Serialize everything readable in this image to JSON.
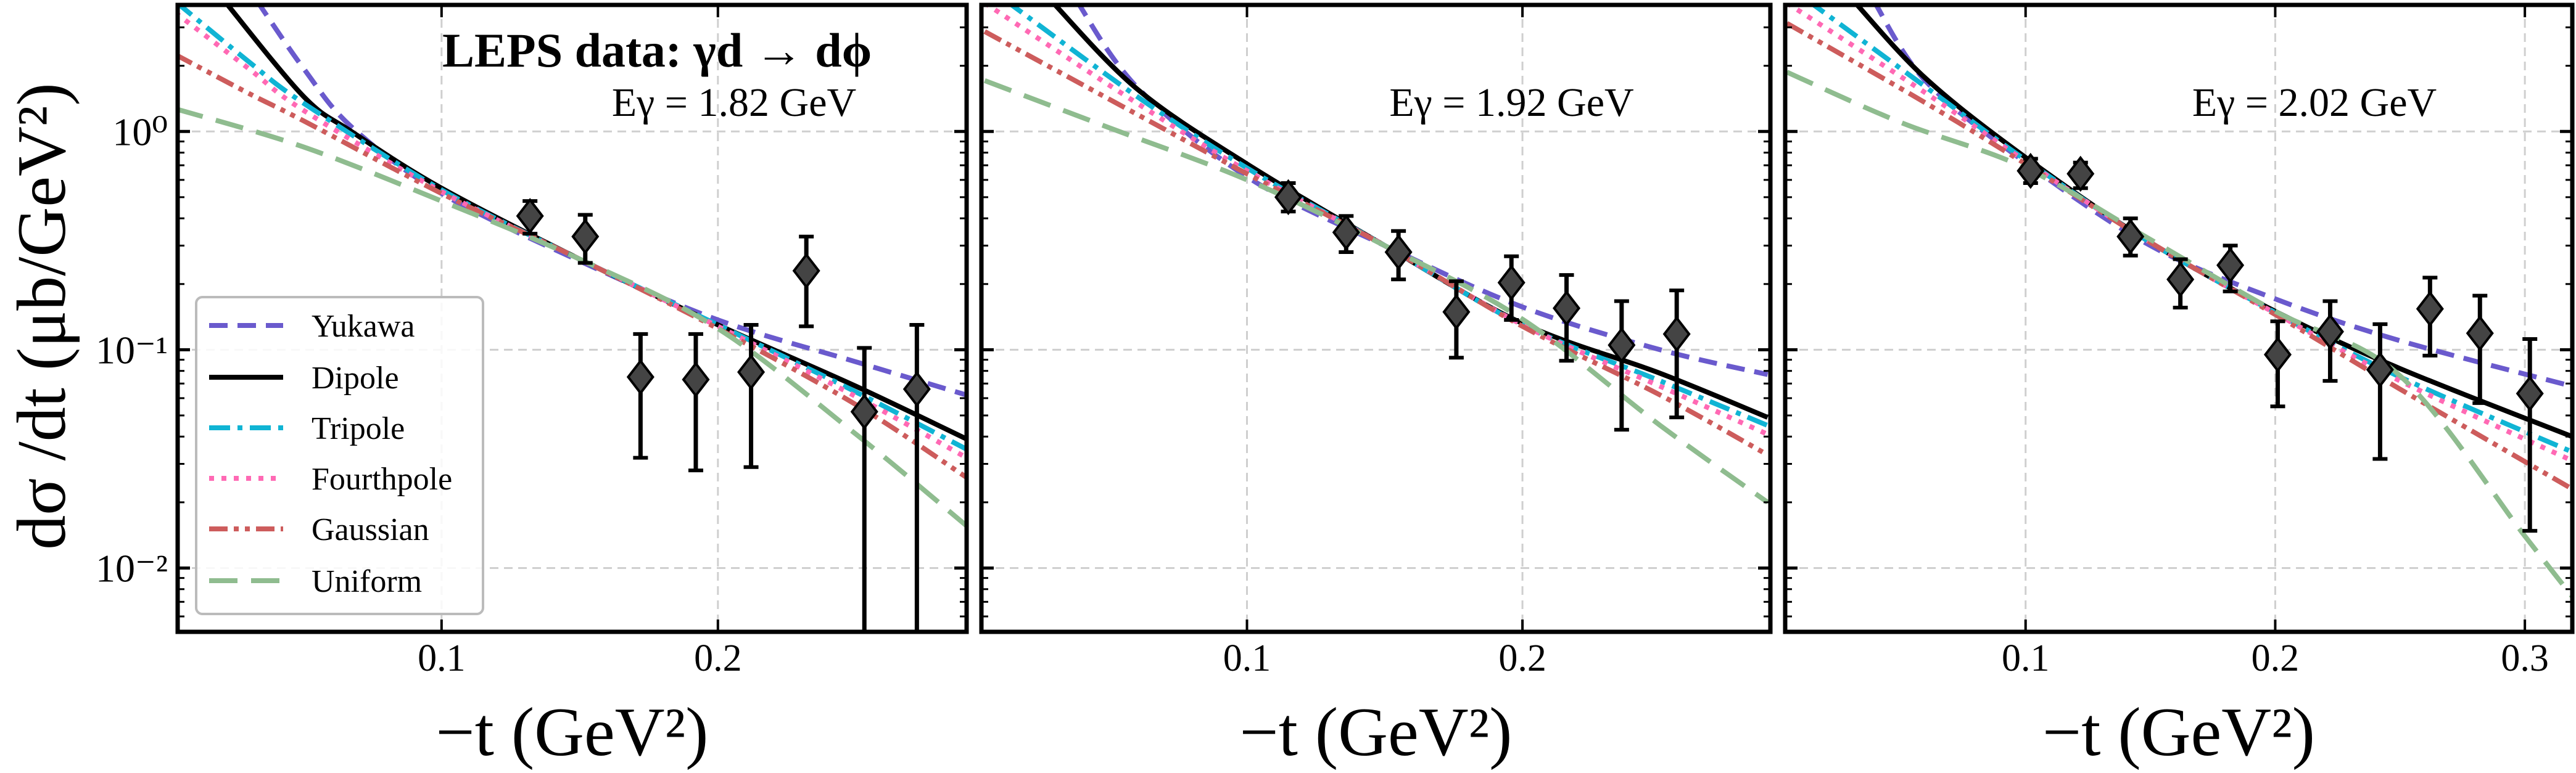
{
  "figure": {
    "ylabel": "dσ /dt (μb/GeV²)",
    "xlabel": "−t (GeV²)",
    "title": "LEPS data: γd → dϕ"
  },
  "legend": {
    "placement": "lower-left of first panel",
    "entries": [
      {
        "name": "Yukawa",
        "color": "#6a5acd",
        "style": "dashed"
      },
      {
        "name": "Dipole",
        "color": "#000000",
        "style": "solid"
      },
      {
        "name": "Tripole",
        "color": "#10b4d4",
        "style": "dashdot"
      },
      {
        "name": "Fourthpole",
        "color": "#ff69b4",
        "style": "dotted"
      },
      {
        "name": "Gaussian",
        "color": "#cd5c5c",
        "style": "dashdotdot"
      },
      {
        "name": "Uniform",
        "color": "#8fbc8f",
        "style": "longdash"
      }
    ]
  },
  "chart_data": [
    {
      "type": "line",
      "annotation": "Eγ = 1.82 GeV",
      "xlabel": "−t (GeV²)",
      "ylabel": "dσ /dt (μb/GeV²)",
      "xlim": [
        0.0045,
        0.29
      ],
      "ylim": [
        0.0051,
        3.8
      ],
      "yscale": "log",
      "grid": true,
      "xticks": [
        "0.1",
        "0.2"
      ],
      "xtick_values": [
        0.1,
        0.2
      ],
      "yticks": [
        "10⁰",
        "10⁻¹",
        "10⁻²"
      ],
      "ytick_values": [
        1,
        0.1,
        0.01
      ],
      "data": {
        "x": [
          0.132,
          0.152,
          0.172,
          0.192,
          0.212,
          0.232,
          0.253,
          0.272
        ],
        "y": [
          0.41,
          0.33,
          0.075,
          0.073,
          0.079,
          0.23,
          0.052,
          0.066
        ],
        "err_high": [
          0.48,
          0.415,
          0.118,
          0.118,
          0.13,
          0.33,
          0.102,
          0.13
        ],
        "err_low": [
          0.34,
          0.25,
          0.032,
          0.028,
          0.029,
          0.128,
          0.001,
          0.001
        ]
      },
      "series": [
        {
          "name": "Yukawa",
          "points": [
            [
              0.033,
              4.0
            ],
            [
              0.05,
              1.95
            ],
            [
              0.0674,
              1.05
            ],
            [
              0.1,
              0.52
            ],
            [
              0.15,
              0.255
            ],
            [
              0.2,
              0.137
            ],
            [
              0.25,
              0.088
            ],
            [
              0.29,
              0.062
            ]
          ]
        },
        {
          "name": "Dipole",
          "points": [
            [
              0.0216,
              3.94
            ],
            [
              0.05,
              1.45
            ],
            [
              0.0674,
              1.0
            ],
            [
              0.1,
              0.55
            ],
            [
              0.15,
              0.26
            ],
            [
              0.2,
              0.13
            ],
            [
              0.25,
              0.068
            ],
            [
              0.29,
              0.039
            ]
          ]
        },
        {
          "name": "Tripole",
          "points": [
            [
              0.0037,
              3.94
            ],
            [
              0.03,
              2.1
            ],
            [
              0.05,
              1.35
            ],
            [
              0.1,
              0.54
            ],
            [
              0.15,
              0.26
            ],
            [
              0.2,
              0.13
            ],
            [
              0.25,
              0.064
            ],
            [
              0.29,
              0.035
            ]
          ]
        },
        {
          "name": "Fourthpole",
          "points": [
            [
              0.0037,
              3.5
            ],
            [
              0.03,
              1.95
            ],
            [
              0.05,
              1.25
            ],
            [
              0.1,
              0.53
            ],
            [
              0.15,
              0.26
            ],
            [
              0.2,
              0.128
            ],
            [
              0.25,
              0.061
            ],
            [
              0.29,
              0.032
            ]
          ]
        },
        {
          "name": "Gaussian",
          "points": [
            [
              0.0037,
              2.25
            ],
            [
              0.03,
              1.5
            ],
            [
              0.05,
              1.12
            ],
            [
              0.1,
              0.52
            ],
            [
              0.15,
              0.26
            ],
            [
              0.2,
              0.125
            ],
            [
              0.25,
              0.056
            ],
            [
              0.29,
              0.026
            ]
          ]
        },
        {
          "name": "Uniform",
          "points": [
            [
              0.0037,
              1.27
            ],
            [
              0.05,
              0.85
            ],
            [
              0.1,
              0.48
            ],
            [
              0.15,
              0.26
            ],
            [
              0.2,
              0.125
            ],
            [
              0.25,
              0.041
            ],
            [
              0.29,
              0.0156
            ]
          ]
        }
      ]
    },
    {
      "type": "line",
      "annotation": "Eγ = 1.92 GeV",
      "xlabel": "−t (GeV²)",
      "xlim": [
        0.0036,
        0.29
      ],
      "ylim": [
        0.0051,
        3.8
      ],
      "yscale": "log",
      "grid": true,
      "xticks": [
        "0.1",
        "0.2"
      ],
      "xtick_values": [
        0.1,
        0.2
      ],
      "ytick_values": [
        1,
        0.1,
        0.01
      ],
      "data": {
        "x": [
          0.115,
          0.136,
          0.155,
          0.176,
          0.196,
          0.216,
          0.236,
          0.256
        ],
        "y": [
          0.5,
          0.345,
          0.28,
          0.149,
          0.203,
          0.155,
          0.105,
          0.118
        ],
        "err_high": [
          0.58,
          0.41,
          0.35,
          0.206,
          0.268,
          0.22,
          0.167,
          0.187
        ],
        "err_low": [
          0.43,
          0.28,
          0.21,
          0.092,
          0.137,
          0.089,
          0.043,
          0.049
        ]
      },
      "series": [
        {
          "name": "Yukawa",
          "points": [
            [
              0.038,
              4.0
            ],
            [
              0.06,
              1.6
            ],
            [
              0.1,
              0.62
            ],
            [
              0.15,
              0.3
            ],
            [
              0.2,
              0.157
            ],
            [
              0.25,
              0.1
            ],
            [
              0.289,
              0.077
            ]
          ]
        },
        {
          "name": "Dipole",
          "points": [
            [
              0.0287,
              4.0
            ],
            [
              0.06,
              1.57
            ],
            [
              0.1,
              0.71
            ],
            [
              0.15,
              0.3
            ],
            [
              0.2,
              0.132
            ],
            [
              0.25,
              0.078
            ],
            [
              0.289,
              0.049
            ]
          ]
        },
        {
          "name": "Tripole",
          "points": [
            [
              0.0122,
              4.0
            ],
            [
              0.06,
              1.45
            ],
            [
              0.1,
              0.68
            ],
            [
              0.15,
              0.3
            ],
            [
              0.2,
              0.13
            ],
            [
              0.25,
              0.072
            ],
            [
              0.289,
              0.045
            ]
          ]
        },
        {
          "name": "Fourthpole",
          "points": [
            [
              0.0048,
              3.88
            ],
            [
              0.06,
              1.35
            ],
            [
              0.1,
              0.66
            ],
            [
              0.15,
              0.3
            ],
            [
              0.2,
              0.13
            ],
            [
              0.25,
              0.068
            ],
            [
              0.289,
              0.041
            ]
          ]
        },
        {
          "name": "Gaussian",
          "points": [
            [
              0.0048,
              2.87
            ],
            [
              0.06,
              1.2
            ],
            [
              0.1,
              0.64
            ],
            [
              0.15,
              0.3
            ],
            [
              0.2,
              0.128
            ],
            [
              0.25,
              0.062
            ],
            [
              0.289,
              0.033
            ]
          ]
        },
        {
          "name": "Uniform",
          "points": [
            [
              0.0048,
              1.71
            ],
            [
              0.05,
              1.04
            ],
            [
              0.1,
              0.6
            ],
            [
              0.15,
              0.3
            ],
            [
              0.2,
              0.138
            ],
            [
              0.25,
              0.045
            ],
            [
              0.289,
              0.02
            ]
          ]
        }
      ]
    },
    {
      "type": "line",
      "annotation": "Eγ = 2.02 GeV",
      "xlabel": "−t (GeV²)",
      "xlim": [
        0.0037,
        0.319
      ],
      "ylim": [
        0.0051,
        3.8
      ],
      "yscale": "log",
      "grid": true,
      "xticks": [
        "0.1",
        "0.2",
        "0.3"
      ],
      "xtick_values": [
        0.1,
        0.2,
        0.3
      ],
      "ytick_values": [
        1,
        0.1,
        0.01
      ],
      "data": {
        "x": [
          0.102,
          0.122,
          0.142,
          0.162,
          0.182,
          0.201,
          0.222,
          0.242,
          0.262,
          0.282,
          0.302
        ],
        "y": [
          0.66,
          0.64,
          0.33,
          0.21,
          0.244,
          0.095,
          0.121,
          0.081,
          0.154,
          0.119,
          0.063
        ],
        "err_high": [
          0.75,
          0.72,
          0.4,
          0.26,
          0.3,
          0.135,
          0.167,
          0.131,
          0.214,
          0.177,
          0.112
        ],
        "err_low": [
          0.58,
          0.55,
          0.27,
          0.156,
          0.185,
          0.055,
          0.072,
          0.0316,
          0.094,
          0.057,
          0.0148
        ]
      },
      "series": [
        {
          "name": "Yukawa",
          "points": [
            [
              0.039,
              4.0
            ],
            [
              0.06,
              1.7
            ],
            [
              0.1,
              0.72
            ],
            [
              0.15,
              0.3
            ],
            [
              0.2,
              0.171
            ],
            [
              0.25,
              0.11
            ],
            [
              0.319,
              0.068
            ]
          ]
        },
        {
          "name": "Dipole",
          "points": [
            [
              0.0308,
              4.0
            ],
            [
              0.06,
              1.75
            ],
            [
              0.1,
              0.76
            ],
            [
              0.15,
              0.31
            ],
            [
              0.2,
              0.15
            ],
            [
              0.25,
              0.082
            ],
            [
              0.319,
              0.04
            ]
          ]
        },
        {
          "name": "Tripole",
          "points": [
            [
              0.0125,
              4.0
            ],
            [
              0.06,
              1.6
            ],
            [
              0.1,
              0.74
            ],
            [
              0.15,
              0.31
            ],
            [
              0.2,
              0.148
            ],
            [
              0.25,
              0.075
            ],
            [
              0.319,
              0.034
            ]
          ]
        },
        {
          "name": "Fourthpole",
          "points": [
            [
              0.0044,
              3.88
            ],
            [
              0.06,
              1.5
            ],
            [
              0.1,
              0.73
            ],
            [
              0.15,
              0.31
            ],
            [
              0.2,
              0.147
            ],
            [
              0.25,
              0.072
            ],
            [
              0.319,
              0.031
            ]
          ]
        },
        {
          "name": "Gaussian",
          "points": [
            [
              0.0044,
              3.13
            ],
            [
              0.06,
              1.35
            ],
            [
              0.1,
              0.71
            ],
            [
              0.15,
              0.31
            ],
            [
              0.2,
              0.145
            ],
            [
              0.25,
              0.066
            ],
            [
              0.319,
              0.023
            ]
          ]
        },
        {
          "name": "Uniform",
          "points": [
            [
              0.0044,
              1.87
            ],
            [
              0.05,
              1.1
            ],
            [
              0.1,
              0.68
            ],
            [
              0.15,
              0.32
            ],
            [
              0.2,
              0.15
            ],
            [
              0.25,
              0.076
            ],
            [
              0.3,
              0.014
            ],
            [
              0.319,
              0.0074
            ]
          ]
        }
      ]
    }
  ]
}
